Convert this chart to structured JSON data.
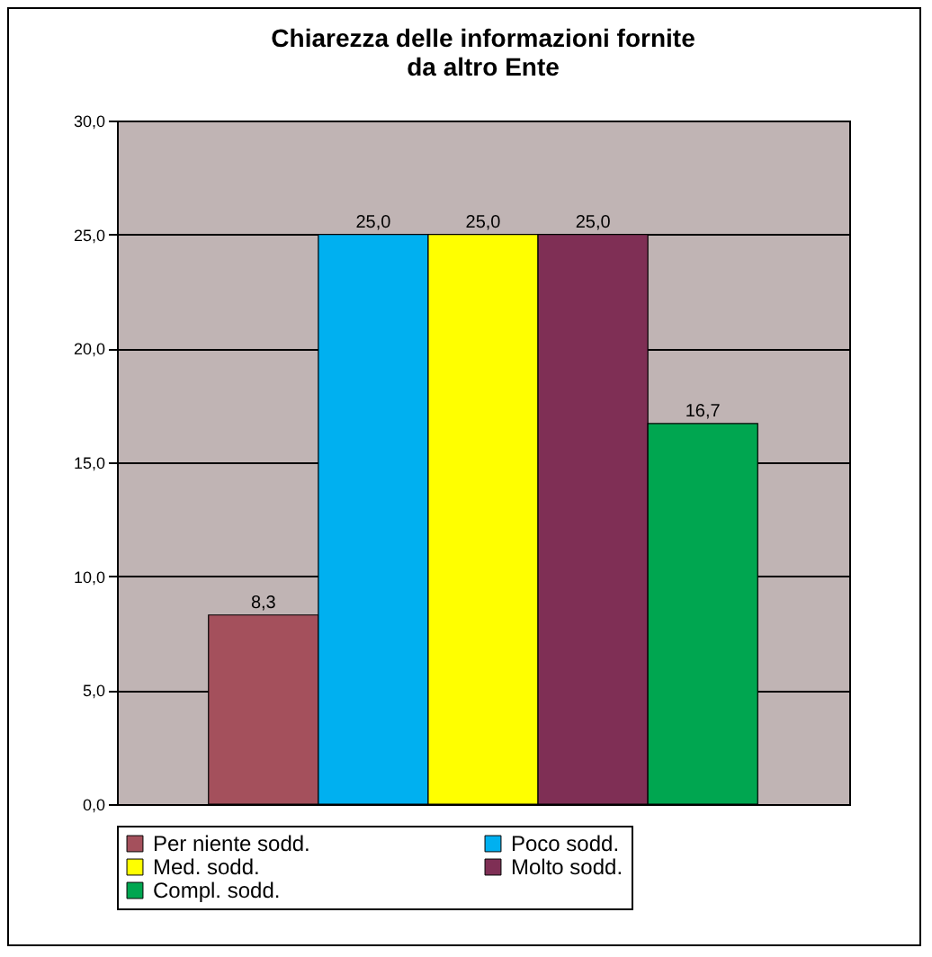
{
  "chart_data": {
    "type": "bar",
    "title": "Chiarezza delle informazioni fornite\nda altro Ente",
    "categories": [
      null
    ],
    "series": [
      {
        "name": "Per niente sodd.",
        "color": "#a4505c",
        "values": [
          8.3
        ],
        "value_labels": [
          "8,3"
        ]
      },
      {
        "name": "Poco sodd.",
        "color": "#00b0f0",
        "values": [
          25.0
        ],
        "value_labels": [
          "25,0"
        ]
      },
      {
        "name": "Med. sodd.",
        "color": "#ffff00",
        "values": [
          25.0
        ],
        "value_labels": [
          "25,0"
        ]
      },
      {
        "name": "Molto sodd.",
        "color": "#7f2f55",
        "values": [
          25.0
        ],
        "value_labels": [
          "25,0"
        ]
      },
      {
        "name": "Compl. sodd.",
        "color": "#00a650",
        "values": [
          16.7
        ],
        "value_labels": [
          "16,7"
        ]
      }
    ],
    "ylim": [
      0,
      30
    ],
    "yticks": [
      {
        "value": 0,
        "label": "0,0"
      },
      {
        "value": 5,
        "label": "5,0"
      },
      {
        "value": 10,
        "label": "10,0"
      },
      {
        "value": 15,
        "label": "15,0"
      },
      {
        "value": 20,
        "label": "20,0"
      },
      {
        "value": 25,
        "label": "25,0"
      },
      {
        "value": 30,
        "label": "30,0"
      }
    ],
    "grid": "y",
    "legend": "bottom",
    "tick_labels": "y"
  }
}
